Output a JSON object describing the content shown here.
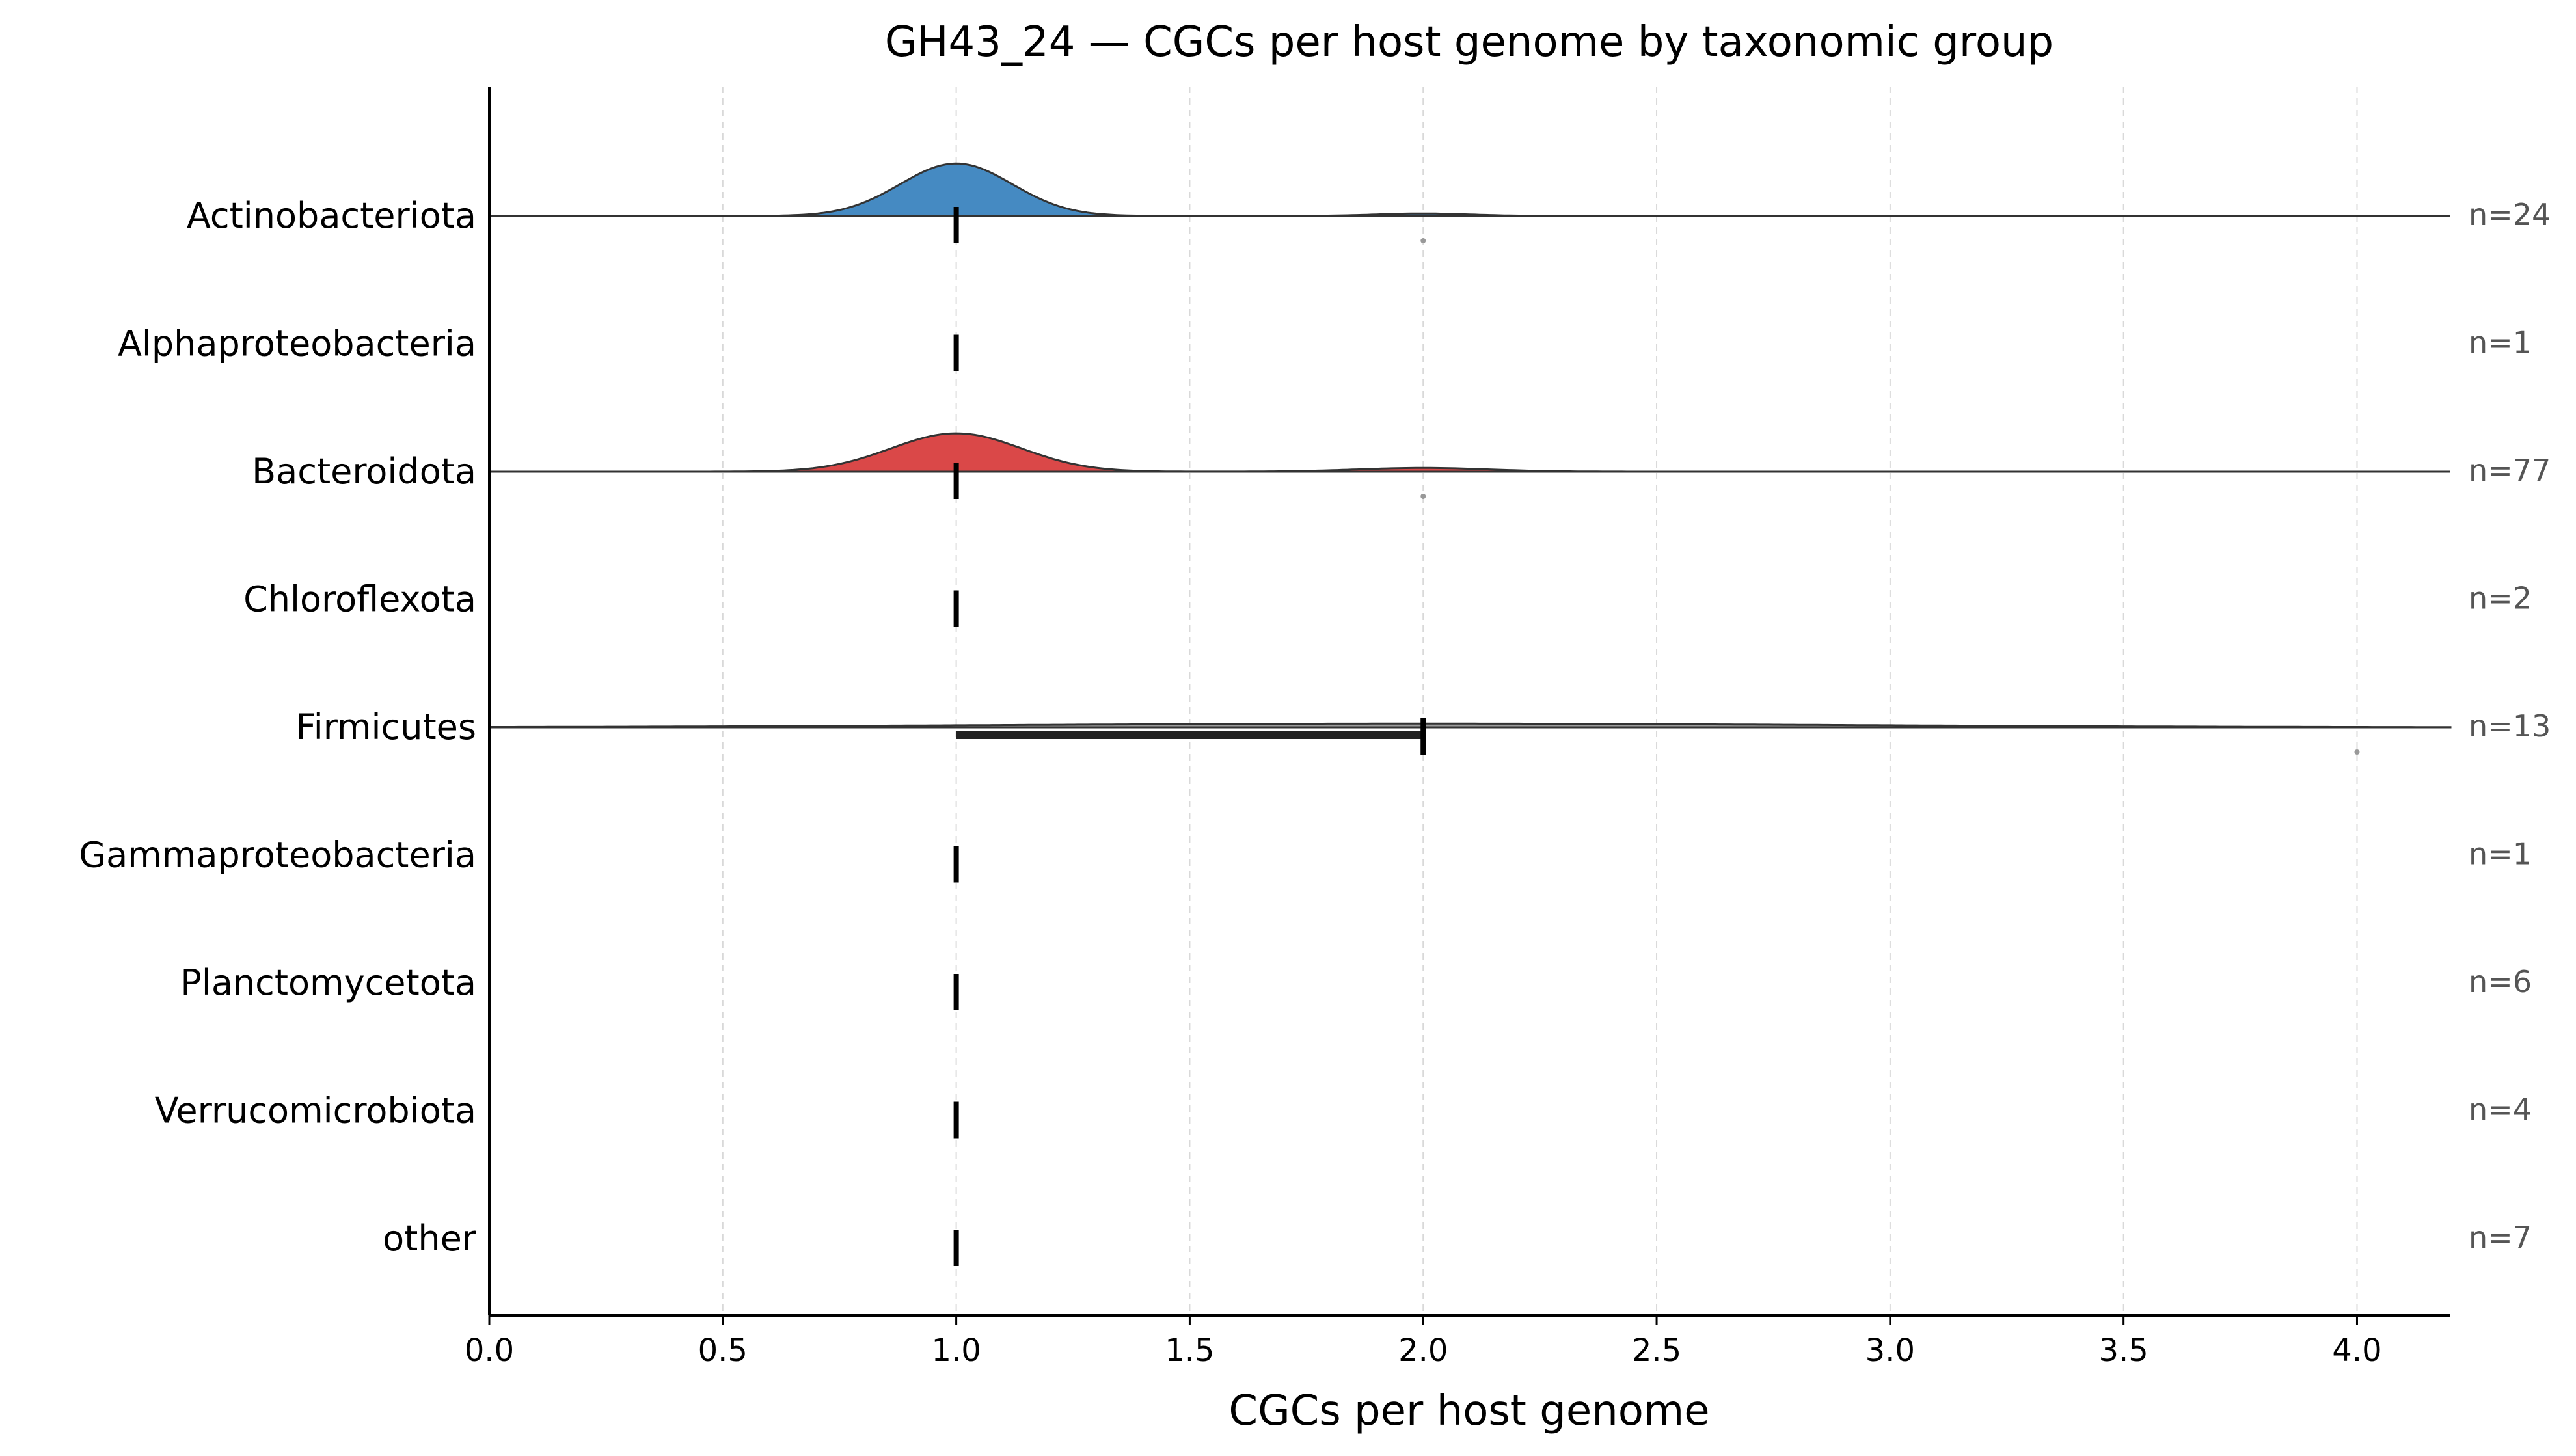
{
  "chart_data": {
    "type": "ridgeline",
    "title": "GH43_24 — CGCs per host genome by taxonomic group",
    "xlabel": "CGCs per host genome",
    "ylabel": "",
    "xlim": [
      0.0,
      4.2
    ],
    "x_ticks": [
      "0.0",
      "0.5",
      "1.0",
      "1.5",
      "2.0",
      "2.5",
      "3.0",
      "3.5",
      "4.0"
    ],
    "x_tick_values": [
      0.0,
      0.5,
      1.0,
      1.5,
      2.0,
      2.5,
      3.0,
      3.5,
      4.0
    ],
    "grid": "vertical dashed",
    "groups": [
      {
        "name": "Actinobacteriota",
        "n_label": "n=24",
        "color": "#4188c1",
        "median": 1.0,
        "q1": 1.0,
        "q3": 1.0,
        "density": [
          {
            "center": 1.0,
            "height": 0.85,
            "width": 0.12
          },
          {
            "center": 2.0,
            "height": 0.04,
            "width": 0.1
          }
        ],
        "outliers": [
          2.0
        ]
      },
      {
        "name": "Alphaproteobacteria",
        "n_label": "n=1",
        "color": "#f0f0f0",
        "median": 1.0,
        "q1": 1.0,
        "q3": 1.0,
        "density": [],
        "outliers": []
      },
      {
        "name": "Bacteroidota",
        "n_label": "n=77",
        "color": "#d94444",
        "median": 1.0,
        "q1": 1.0,
        "q3": 1.0,
        "density": [
          {
            "center": 1.0,
            "height": 0.62,
            "width": 0.14
          },
          {
            "center": 2.0,
            "height": 0.06,
            "width": 0.14
          }
        ],
        "outliers": [
          2.0
        ]
      },
      {
        "name": "Chloroflexota",
        "n_label": "n=2",
        "color": "#f0f0f0",
        "median": 1.0,
        "q1": 1.0,
        "q3": 1.0,
        "density": [],
        "outliers": []
      },
      {
        "name": "Firmicutes",
        "n_label": "n=13",
        "color": "#9a9a9a",
        "median": 2.0,
        "q1": 1.0,
        "q3": 2.0,
        "density": [
          {
            "center": 2.0,
            "height": 0.06,
            "width": 0.9
          }
        ],
        "outliers": [
          4.0
        ]
      },
      {
        "name": "Gammaproteobacteria",
        "n_label": "n=1",
        "color": "#f0f0f0",
        "median": 1.0,
        "q1": 1.0,
        "q3": 1.0,
        "density": [],
        "outliers": []
      },
      {
        "name": "Planctomycetota",
        "n_label": "n=6",
        "color": "#f0f0f0",
        "median": 1.0,
        "q1": 1.0,
        "q3": 1.0,
        "density": [],
        "outliers": []
      },
      {
        "name": "Verrucomicrobiota",
        "n_label": "n=4",
        "color": "#f0f0f0",
        "median": 1.0,
        "q1": 1.0,
        "q3": 1.0,
        "density": [],
        "outliers": []
      },
      {
        "name": "other",
        "n_label": "n=7",
        "color": "#f0f0f0",
        "median": 1.0,
        "q1": 1.0,
        "q3": 1.0,
        "density": [],
        "outliers": []
      }
    ]
  }
}
